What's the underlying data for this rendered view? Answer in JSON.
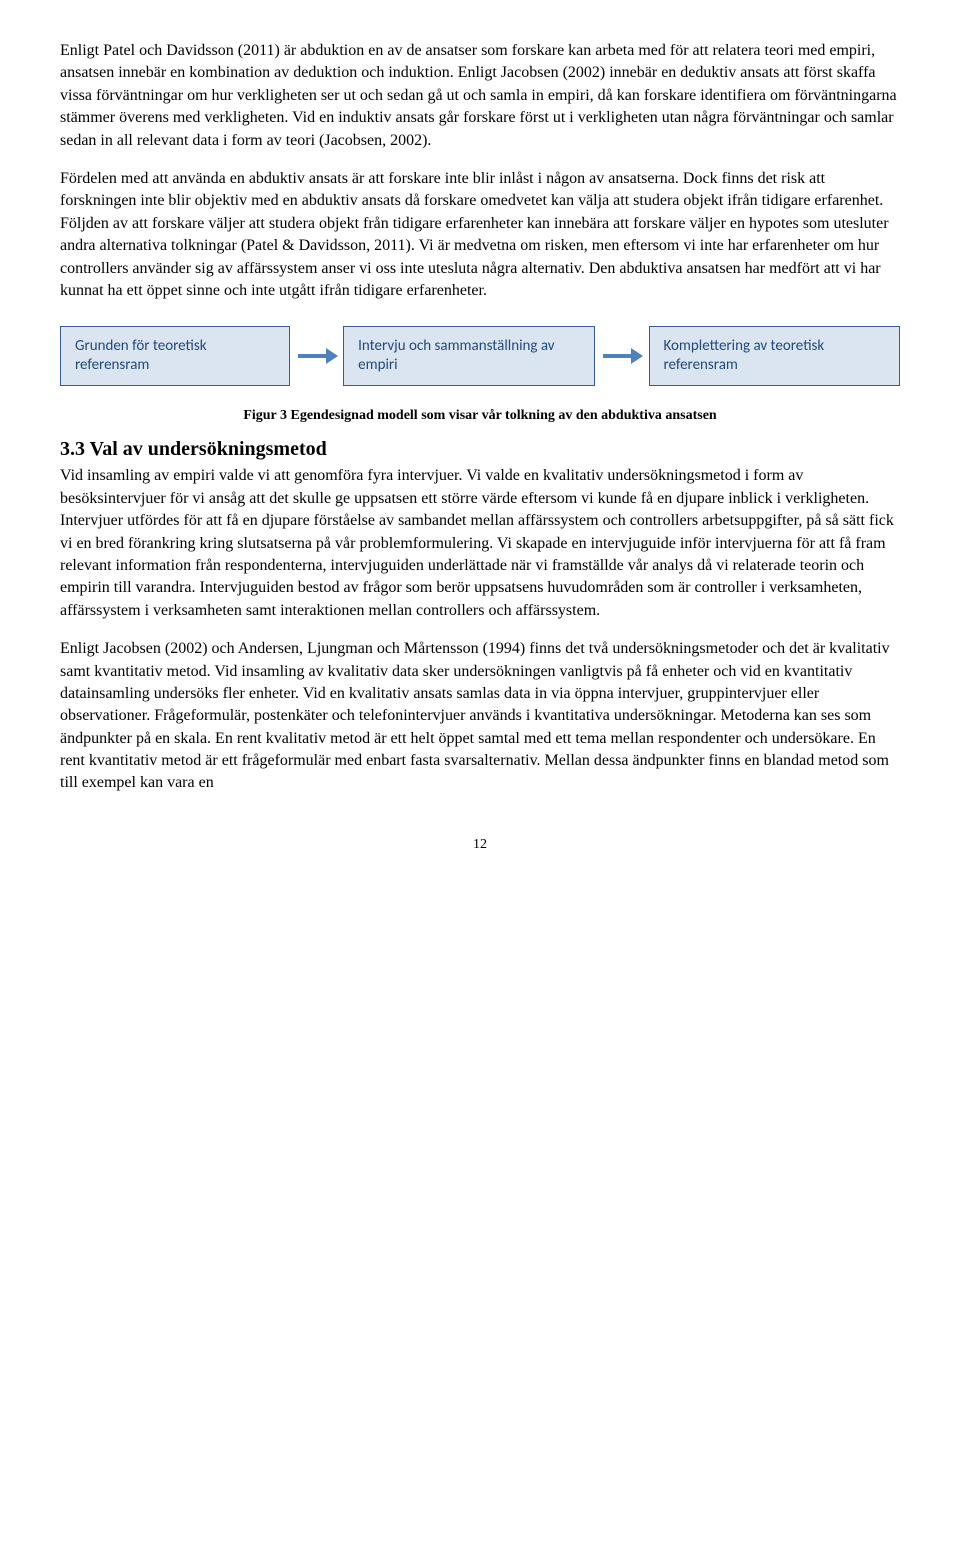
{
  "paragraphs": {
    "p1": "Enligt Patel och Davidsson (2011) är abduktion en av de ansatser som forskare kan arbeta med för att relatera teori med empiri, ansatsen innebär en kombination av deduktion och induktion. Enligt Jacobsen (2002) innebär en deduktiv ansats att först skaffa vissa förväntningar om hur verkligheten ser ut och sedan gå ut och samla in empiri, då kan forskare identifiera om förväntningarna stämmer överens med verkligheten. Vid en induktiv ansats går forskare först ut i verkligheten utan några förväntningar och samlar sedan in all relevant data i form av teori (Jacobsen, 2002).",
    "p2": "Fördelen med att använda en abduktiv ansats är att forskare inte blir inlåst i någon av ansatserna. Dock finns det risk att forskningen inte blir objektiv med en abduktiv ansats då forskare omedvetet kan välja att studera objekt ifrån tidigare erfarenhet. Följden av att forskare väljer att studera objekt från tidigare erfarenheter kan innebära att forskare väljer en hypotes som utesluter andra alternativa tolkningar (Patel & Davidsson, 2011). Vi är medvetna om risken, men eftersom vi inte har erfarenheter om hur controllers använder sig av affärssystem anser vi oss inte utesluta några alternativ. Den abduktiva ansatsen har medfört att vi har kunnat ha ett öppet sinne och inte utgått ifrån tidigare erfarenheter.",
    "p3": "Vid insamling av empiri valde vi att genomföra fyra intervjuer. Vi valde en kvalitativ undersökningsmetod i form av besöksintervjuer för vi ansåg att det skulle ge uppsatsen ett större värde eftersom vi kunde få en djupare inblick i verkligheten. Intervjuer utfördes för att få en djupare förståelse av sambandet mellan affärssystem och controllers arbetsuppgifter, på så sätt fick vi en bred förankring kring slutsatserna på vår problemformulering. Vi skapade en intervjuguide inför intervjuerna för att få fram relevant information från respondenterna, intervjuguiden underlättade när vi framställde vår analys då vi relaterade teorin och empirin till varandra. Intervjuguiden bestod av frågor som berör uppsatsens huvudområden som är controller i verksamheten, affärssystem i verksamheten samt interaktionen mellan controllers och affärssystem.",
    "p4": "Enligt Jacobsen (2002)  och Andersen, Ljungman och Mårtensson (1994) finns det två undersökningsmetoder och det är kvalitativ samt kvantitativ metod. Vid insamling av kvalitativ data sker undersökningen vanligtvis på få enheter och vid en kvantitativ datainsamling undersöks fler enheter. Vid en kvalitativ ansats samlas data in via öppna intervjuer, gruppintervjuer eller observationer. Frågeformulär, postenkäter och telefonintervjuer används i kvantitativa undersökningar. Metoderna kan ses som ändpunkter på en skala. En rent kvalitativ metod är ett helt öppet samtal med ett tema mellan respondenter och undersökare. En rent kvantitativ metod är ett frågeformulär med enbart fasta svarsalternativ. Mellan dessa ändpunkter finns en blandad metod som till exempel kan vara en"
  },
  "flowchart": {
    "type": "flowchart",
    "nodes": [
      {
        "label": "Grunden för teoretisk referensram"
      },
      {
        "label": "Intervju och sammanställning av empiri"
      },
      {
        "label": "Komplettering av teoretisk referensram"
      }
    ],
    "box_bg": "#dbe5f1",
    "box_border": "#385d8a",
    "box_text_color": "#1f497d",
    "arrow_color": "#4f81bd",
    "box_font_family": "Calibri, Arial, sans-serif",
    "box_font_size_pt": 11
  },
  "caption": "Figur 3 Egendesignad modell som visar vår tolkning av den abduktiva ansatsen",
  "heading": "3.3 Val av undersökningsmetod",
  "page_number": "12"
}
